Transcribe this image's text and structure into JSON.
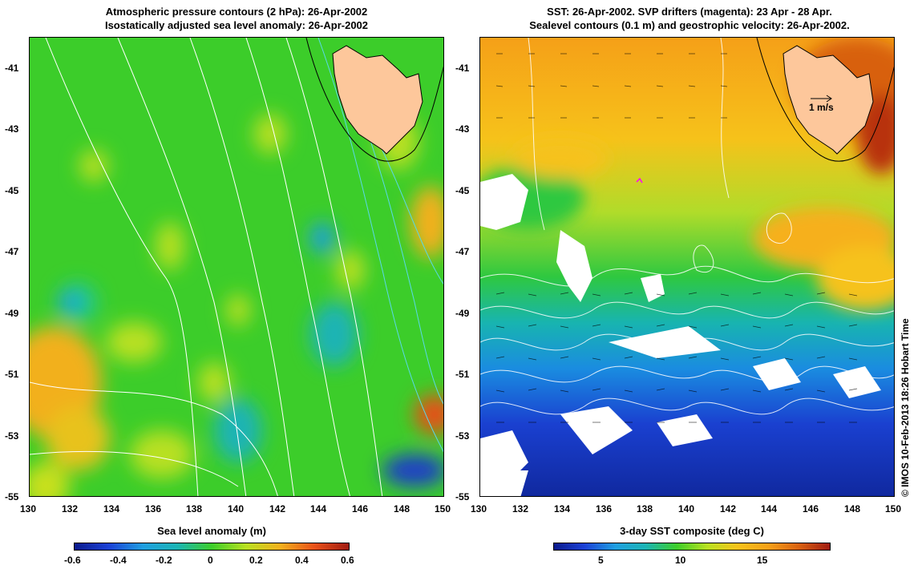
{
  "left_panel": {
    "title_line1": "Atmospheric pressure contours (2 hPa): 26-Apr-2002",
    "title_line2": "Isostatically adjusted sea level anomaly: 26-Apr-2002",
    "colorbar": {
      "label": "Sea level anomaly (m)",
      "ticks": [
        "-0.6",
        "-0.4",
        "-0.2",
        "0",
        "0.2",
        "0.4",
        "0.6"
      ],
      "min": -0.6,
      "max": 0.6
    }
  },
  "right_panel": {
    "title_line1": "SST: 26-Apr-2002. SVP drifters (magenta): 23 Apr - 28 Apr.",
    "title_line2": "Sealevel contours (0.1 m) and geostrophic velocity: 26-Apr-2002.",
    "velocity_scale": "1 m/s",
    "colorbar": {
      "label": "3-day SST composite (deg C)",
      "ticks": [
        "5",
        "10",
        "15"
      ]
    }
  },
  "axes": {
    "lat_ticks": [
      "-41",
      "-43",
      "-45",
      "-47",
      "-49",
      "-51",
      "-53",
      "-55"
    ],
    "lon_ticks": [
      "130",
      "132",
      "134",
      "136",
      "138",
      "140",
      "142",
      "144",
      "146",
      "148",
      "150"
    ]
  },
  "credit": "© IMOS 10-Feb-2013 18:26 Hobart Time",
  "colors": {
    "land": "#fdc79b",
    "sla_base": "#3ccd2a",
    "sst_warm": "#f7a81a",
    "sst_cold": "#1a3fd6"
  }
}
